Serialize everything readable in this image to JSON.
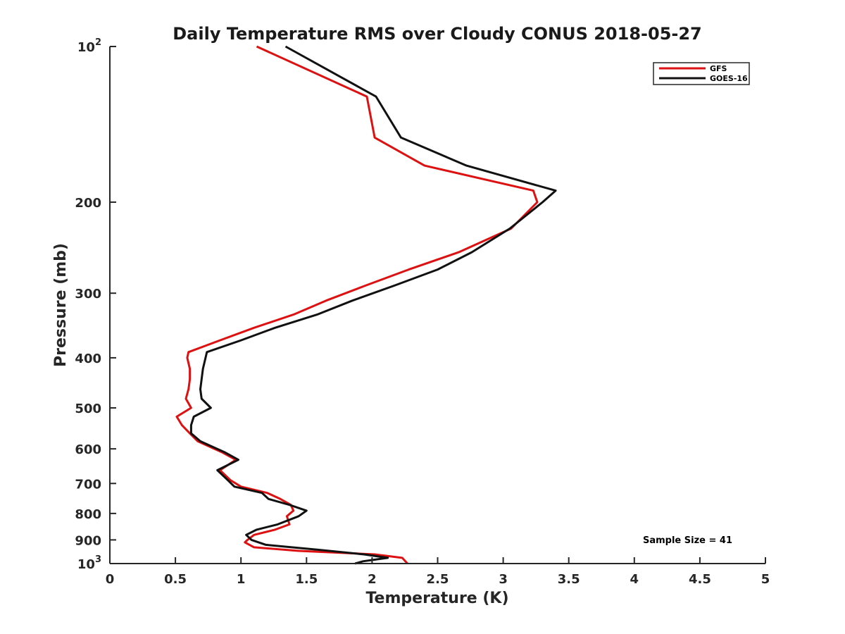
{
  "chart_data": {
    "type": "line",
    "title": "Daily Temperature RMS over Cloudy CONUS 2018-05-27",
    "xlabel": "Temperature (K)",
    "ylabel": "Pressure (mb)",
    "xlim": [
      0,
      5
    ],
    "ylim": [
      100,
      1000
    ],
    "y_scale": "log",
    "y_reversed": true,
    "grid": false,
    "legend_position": "top-right",
    "x_ticks": [
      {
        "value": 0,
        "label": "0"
      },
      {
        "value": 0.5,
        "label": "0.5"
      },
      {
        "value": 1,
        "label": "1"
      },
      {
        "value": 1.5,
        "label": "1.5"
      },
      {
        "value": 2,
        "label": "2"
      },
      {
        "value": 2.5,
        "label": "2.5"
      },
      {
        "value": 3,
        "label": "3"
      },
      {
        "value": 3.5,
        "label": "3.5"
      },
      {
        "value": 4,
        "label": "4"
      },
      {
        "value": 4.5,
        "label": "4.5"
      },
      {
        "value": 5,
        "label": "5"
      }
    ],
    "y_ticks": [
      {
        "value": 100,
        "base": "10",
        "exp": "2"
      },
      {
        "value": 200,
        "label": "200"
      },
      {
        "value": 300,
        "label": "300"
      },
      {
        "value": 400,
        "label": "400"
      },
      {
        "value": 500,
        "label": "500"
      },
      {
        "value": 600,
        "label": "600"
      },
      {
        "value": 700,
        "label": "700"
      },
      {
        "value": 800,
        "label": "800"
      },
      {
        "value": 900,
        "label": "900"
      },
      {
        "value": 1000,
        "base": "10",
        "exp": "3"
      }
    ],
    "annotation": "Sample Size = 41",
    "series": [
      {
        "name": "GFS",
        "color": "#dd1111",
        "points": [
          [
            1.12,
            100
          ],
          [
            1.96,
            125
          ],
          [
            2.02,
            150
          ],
          [
            2.4,
            170
          ],
          [
            3.23,
            190
          ],
          [
            3.26,
            200
          ],
          [
            3.06,
            225
          ],
          [
            2.66,
            250
          ],
          [
            2.28,
            270
          ],
          [
            1.95,
            290
          ],
          [
            1.65,
            310
          ],
          [
            1.4,
            330
          ],
          [
            1.1,
            350
          ],
          [
            0.84,
            370
          ],
          [
            0.6,
            390
          ],
          [
            0.59,
            400
          ],
          [
            0.61,
            420
          ],
          [
            0.61,
            440
          ],
          [
            0.6,
            460
          ],
          [
            0.58,
            480
          ],
          [
            0.62,
            500
          ],
          [
            0.51,
            520
          ],
          [
            0.55,
            540
          ],
          [
            0.61,
            560
          ],
          [
            0.67,
            580
          ],
          [
            0.86,
            610
          ],
          [
            0.96,
            630
          ],
          [
            0.84,
            660
          ],
          [
            0.92,
            690
          ],
          [
            1.0,
            710
          ],
          [
            1.2,
            730
          ],
          [
            1.3,
            750
          ],
          [
            1.38,
            770
          ],
          [
            1.4,
            790
          ],
          [
            1.35,
            810
          ],
          [
            1.37,
            840
          ],
          [
            1.26,
            860
          ],
          [
            1.1,
            880
          ],
          [
            1.05,
            900
          ],
          [
            1.03,
            910
          ],
          [
            1.1,
            930
          ],
          [
            1.44,
            945
          ],
          [
            2.02,
            960
          ],
          [
            2.23,
            975
          ],
          [
            2.27,
            1000
          ]
        ]
      },
      {
        "name": "GOES-16",
        "color": "#111111",
        "points": [
          [
            1.34,
            100
          ],
          [
            2.03,
            125
          ],
          [
            2.22,
            150
          ],
          [
            2.72,
            170
          ],
          [
            3.4,
            190
          ],
          [
            3.3,
            200
          ],
          [
            3.05,
            225
          ],
          [
            2.76,
            250
          ],
          [
            2.5,
            270
          ],
          [
            2.17,
            290
          ],
          [
            1.85,
            310
          ],
          [
            1.58,
            330
          ],
          [
            1.26,
            350
          ],
          [
            1.0,
            370
          ],
          [
            0.74,
            390
          ],
          [
            0.73,
            400
          ],
          [
            0.71,
            420
          ],
          [
            0.7,
            440
          ],
          [
            0.69,
            460
          ],
          [
            0.7,
            480
          ],
          [
            0.77,
            500
          ],
          [
            0.64,
            520
          ],
          [
            0.62,
            540
          ],
          [
            0.62,
            560
          ],
          [
            0.69,
            580
          ],
          [
            0.88,
            610
          ],
          [
            0.98,
            630
          ],
          [
            0.82,
            660
          ],
          [
            0.9,
            690
          ],
          [
            0.95,
            710
          ],
          [
            1.16,
            730
          ],
          [
            1.21,
            750
          ],
          [
            1.37,
            770
          ],
          [
            1.5,
            790
          ],
          [
            1.44,
            810
          ],
          [
            1.28,
            840
          ],
          [
            1.12,
            860
          ],
          [
            1.04,
            880
          ],
          [
            1.08,
            900
          ],
          [
            1.19,
            920
          ],
          [
            1.58,
            940
          ],
          [
            1.94,
            960
          ],
          [
            2.12,
            975
          ],
          [
            1.93,
            990
          ],
          [
            1.87,
            1000
          ]
        ]
      }
    ]
  }
}
